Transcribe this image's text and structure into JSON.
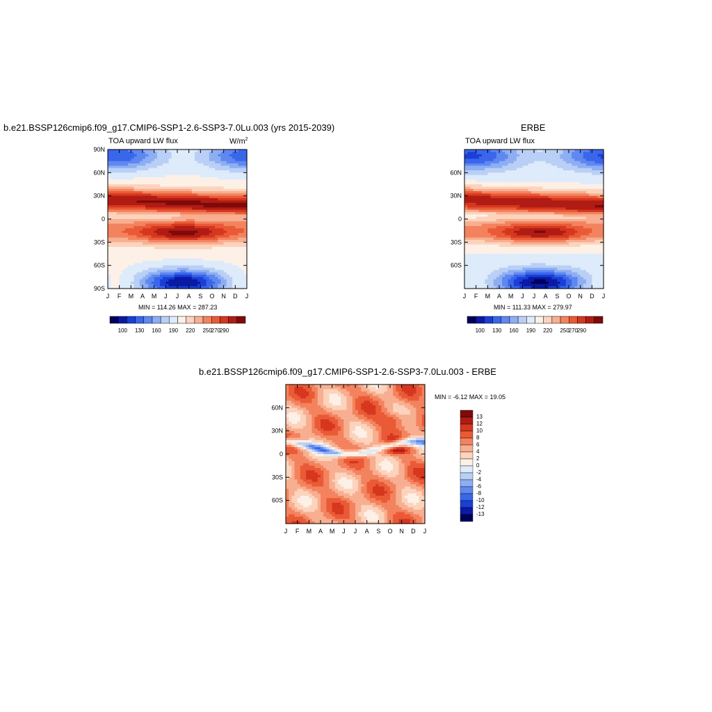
{
  "chart_data": [
    {
      "type": "heatmap",
      "title": "b.e21.BSSP126cmip6.f09_g17.CMIP6-SSP1-2.6-SSP3-7.0Lu.003 (yrs 2015-2039)",
      "subtitle": "TOA upward LW flux",
      "units": "W/m",
      "units_sup": "2",
      "stats": "MIN = 114.26 MAX = 287.23",
      "x_ticks": [
        "J",
        "F",
        "M",
        "A",
        "M",
        "J",
        "J",
        "A",
        "S",
        "O",
        "N",
        "D",
        "J"
      ],
      "y_ticks": [
        "90N",
        "60N",
        "30N",
        "0",
        "30S",
        "60S",
        "90S"
      ],
      "y_tick_lats": [
        90,
        60,
        30,
        0,
        -30,
        -60,
        -90
      ],
      "ylim": [
        -90,
        90
      ],
      "levels": [
        100,
        110,
        120,
        130,
        140,
        150,
        160,
        170,
        180,
        190,
        200,
        210,
        220,
        230,
        240,
        250,
        260,
        270,
        280,
        290
      ],
      "colorbar_labels": [
        "100",
        "130",
        "160",
        "190",
        "220",
        "250",
        "270",
        "290"
      ]
    },
    {
      "type": "heatmap",
      "title": "ERBE",
      "subtitle": "TOA upward LW flux",
      "stats": "MIN = 111.33 MAX = 279.97",
      "x_ticks": [
        "J",
        "F",
        "M",
        "A",
        "M",
        "J",
        "J",
        "A",
        "S",
        "O",
        "N",
        "D",
        "J"
      ],
      "y_ticks": [
        "60N",
        "30N",
        "0",
        "30S",
        "60S"
      ],
      "y_tick_lats": [
        60,
        30,
        0,
        -30,
        -60
      ],
      "ylim": [
        -90,
        90
      ],
      "levels": [
        100,
        110,
        120,
        130,
        140,
        150,
        160,
        170,
        180,
        190,
        200,
        210,
        220,
        230,
        240,
        250,
        260,
        270,
        280,
        290
      ],
      "colorbar_labels": [
        "100",
        "130",
        "160",
        "190",
        "220",
        "250",
        "270",
        "290"
      ]
    },
    {
      "type": "heatmap",
      "title": "b.e21.BSSP126cmip6.f09_g17.CMIP6-SSP1-2.6-SSP3-7.0Lu.003 - ERBE",
      "stats": "MIN =  -6.12 MAX =  19.05",
      "x_ticks": [
        "J",
        "F",
        "M",
        "A",
        "M",
        "J",
        "J",
        "A",
        "S",
        "O",
        "N",
        "D",
        "J"
      ],
      "y_ticks": [
        "60N",
        "30N",
        "0",
        "30S",
        "60S"
      ],
      "y_tick_lats": [
        60,
        30,
        0,
        -30,
        -60
      ],
      "ylim": [
        -90,
        90
      ],
      "colorbar_labels": [
        "13",
        "12",
        "10",
        "8",
        "6",
        "4",
        "2",
        "0",
        "-2",
        "-4",
        "-6",
        "-8",
        "-10",
        "-12",
        "-13"
      ]
    }
  ],
  "colors": {
    "seq_palette": [
      "#00005c",
      "#0a1aa5",
      "#1a3fd6",
      "#3a66ec",
      "#5f88f0",
      "#8eaef3",
      "#b9cff6",
      "#ddebfa",
      "#fdf0e6",
      "#fcd3bc",
      "#f8ae90",
      "#f3835e",
      "#ea5a36",
      "#d6371f",
      "#b01c14",
      "#7e0a0a"
    ],
    "diff_palette": [
      "#7e0a0a",
      "#b01c14",
      "#d6371f",
      "#ea5a36",
      "#f3835e",
      "#f8ae90",
      "#fcd3bc",
      "#fdf0e6",
      "#ddebfa",
      "#b9cff6",
      "#8eaef3",
      "#5f88f0",
      "#3a66ec",
      "#1a3fd6",
      "#0a1aa5",
      "#00005c"
    ]
  }
}
